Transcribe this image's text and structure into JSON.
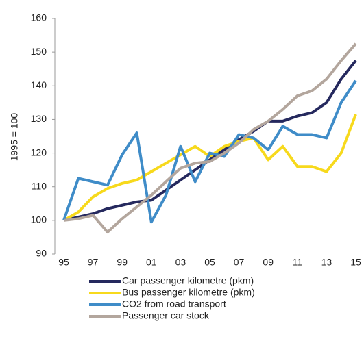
{
  "chart_data": {
    "type": "line",
    "y_label": "1995 = 100",
    "categories": [
      "95",
      null,
      "97",
      null,
      "99",
      null,
      "01",
      null,
      "03",
      null,
      "05",
      null,
      "07",
      null,
      "09",
      null,
      "11",
      null,
      "13",
      null,
      "15"
    ],
    "series": [
      {
        "name": "Car passenger kilometre (pkm)",
        "color": "#25295e",
        "values": [
          100,
          101,
          102,
          103.5,
          104.5,
          105.5,
          106,
          109,
          112,
          115,
          118,
          121,
          124,
          126.5,
          129.5,
          129.5,
          131,
          132,
          135,
          142,
          147.5
        ]
      },
      {
        "name": "Bus passenger kilometre (pkm)",
        "color": "#f7d91c",
        "values": [
          100,
          102.5,
          107,
          109.5,
          111,
          112,
          114.5,
          117,
          119.5,
          122,
          119,
          122,
          123.5,
          124.5,
          118,
          122,
          116,
          116,
          114.5,
          120,
          131.5
        ]
      },
      {
        "name": "CO2 from road transport",
        "color": "#3f8cc8",
        "values": [
          100,
          112.5,
          111.5,
          110.5,
          119.5,
          126,
          99.5,
          107.5,
          122,
          111.5,
          120,
          119,
          125.5,
          124.5,
          121,
          128,
          125.5,
          125.5,
          124.5,
          135,
          141.5
        ]
      },
      {
        "name": "Passenger car stock",
        "color": "#b3a69d",
        "values": [
          100,
          100.5,
          101.5,
          96.5,
          100.5,
          104,
          107.5,
          111.5,
          115.5,
          117,
          117.5,
          120,
          123,
          127,
          129.5,
          133,
          137,
          138.5,
          142,
          147.5,
          152.5
        ]
      }
    ],
    "ylim": [
      90,
      160
    ],
    "yticks": [
      90,
      100,
      110,
      120,
      130,
      140,
      150,
      160
    ],
    "grid": false
  }
}
